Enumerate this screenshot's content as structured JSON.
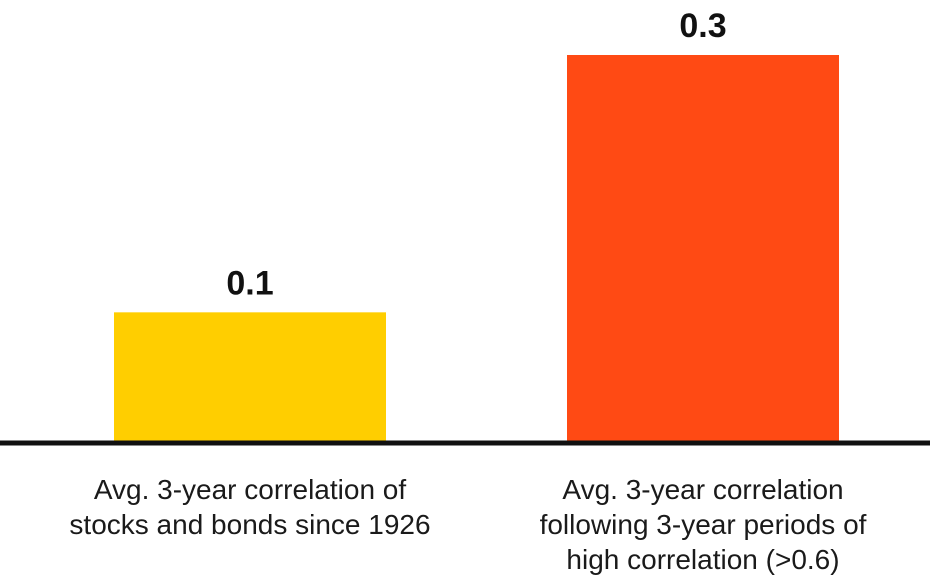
{
  "chart_data": {
    "type": "bar",
    "title": "",
    "xlabel": "",
    "ylabel": "",
    "ylim": [
      0,
      0.3
    ],
    "grid": false,
    "categories": [
      [
        "Avg. 3-year correlation of",
        "stocks and bonds since 1926"
      ],
      [
        "Avg. 3-year correlation",
        "following 3-year periods of",
        "high correlation (>0.6)"
      ]
    ],
    "values": [
      0.1,
      0.3
    ],
    "data_labels": [
      "0.1",
      "0.3"
    ],
    "colors": [
      "#FFCE00",
      "#FF4A14"
    ],
    "baseline_color": "#111111"
  }
}
